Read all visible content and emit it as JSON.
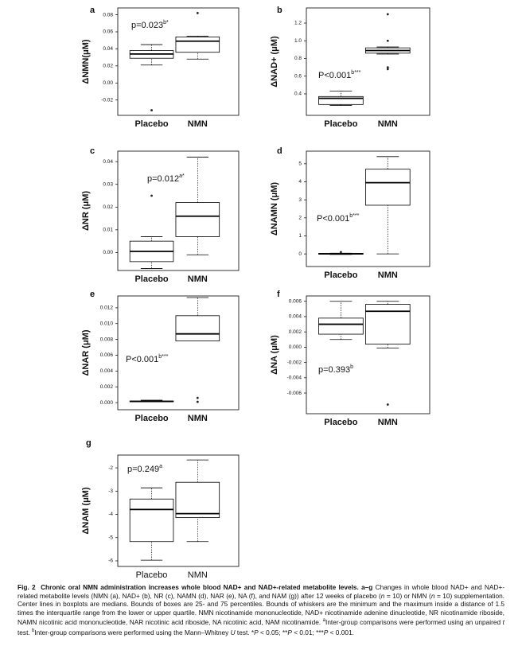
{
  "chart_data": [
    {
      "type": "box",
      "panel_label": "a",
      "ylabel": "ΔNMN(μM)",
      "annotation": {
        "text": "p=0.023",
        "sup": "b*"
      },
      "categories": [
        "Placebo",
        "NMN"
      ],
      "boxes": [
        {
          "min": 0.021,
          "q1": 0.029,
          "median": 0.034,
          "q3": 0.038,
          "max": 0.045,
          "outliers": [
            -0.032
          ]
        },
        {
          "min": 0.028,
          "q1": 0.036,
          "median": 0.049,
          "q3": 0.054,
          "max": 0.055,
          "outliers": [
            0.082
          ]
        }
      ],
      "ylim": [
        -0.038,
        0.088
      ],
      "yticks": [
        {
          "value": -0.02,
          "label": "-0.02"
        },
        {
          "value": 0,
          "label": "0.00"
        },
        0.02,
        0.04,
        0.06,
        0.08
      ]
    },
    {
      "type": "box",
      "panel_label": "b",
      "ylabel": "ΔNAD+ (μM)",
      "annotation": {
        "text": "P<0.001",
        "sup": "b***"
      },
      "categories": [
        "Placebo",
        "NMN"
      ],
      "boxes": [
        {
          "min": 0.27,
          "q1": 0.28,
          "median": 0.35,
          "q3": 0.37,
          "max": 0.43,
          "outliers": []
        },
        {
          "min": 0.85,
          "q1": 0.86,
          "median": 0.89,
          "q3": 0.92,
          "max": 0.93,
          "outliers": [
            1.3,
            1.0,
            0.7,
            0.68
          ]
        }
      ],
      "ylim": [
        0.157,
        1.371
      ],
      "yticks": [
        0.4,
        0.6,
        0.8,
        {
          "value": 1,
          "label": "1.0"
        },
        1.2
      ]
    },
    {
      "type": "box",
      "panel_label": "c",
      "ylabel": "ΔNR (μM)",
      "annotation": {
        "text": "p=0.012",
        "sup": "a*"
      },
      "categories": [
        "Placebo",
        "NMN"
      ],
      "boxes": [
        {
          "min": -0.007,
          "q1": -0.004,
          "median": 0.0005,
          "q3": 0.005,
          "max": 0.007,
          "outliers": [
            0.025
          ]
        },
        {
          "min": -0.001,
          "q1": 0.007,
          "median": 0.016,
          "q3": 0.022,
          "max": 0.042,
          "outliers": []
        }
      ],
      "ylim": [
        -0.0079,
        0.0446
      ],
      "yticks": [
        {
          "value": 0,
          "label": "0.00"
        },
        0.01,
        0.02,
        0.03,
        0.04
      ]
    },
    {
      "type": "box",
      "panel_label": "d",
      "ylabel": "ΔNAMN (μM)",
      "annotation": {
        "text": "P<0.001",
        "sup": "b***"
      },
      "categories": [
        "Placebo",
        "NMN"
      ],
      "boxes": [
        {
          "min": -0.03,
          "q1": -0.02,
          "median": 0,
          "q3": 0.03,
          "max": 0.04,
          "outliers": [
            0.1
          ]
        },
        {
          "min": 0,
          "q1": 2.7,
          "median": 3.95,
          "q3": 4.7,
          "max": 5.4,
          "outliers": []
        }
      ],
      "ylim": [
        -0.7,
        5.7
      ],
      "yticks": [
        0,
        1,
        2,
        3,
        4,
        5
      ]
    },
    {
      "type": "box",
      "panel_label": "e",
      "ylabel": "ΔNAR (μM)",
      "annotation": {
        "text": "P<0.001",
        "sup": "b***"
      },
      "categories": [
        "Placebo",
        "NMN"
      ],
      "boxes": [
        {
          "min": 0.0001,
          "q1": 0.0001,
          "median": 0.00015,
          "q3": 0.0002,
          "max": 0.0003,
          "outliers": []
        },
        {
          "min": 0.0078,
          "q1": 0.0078,
          "median": 0.0087,
          "q3": 0.011,
          "max": 0.0133,
          "outliers": [
            0.0006,
            0.0001
          ]
        }
      ],
      "ylim": [
        -0.0009,
        0.0135
      ],
      "yticks": [
        {
          "value": 0,
          "label": "0.000"
        },
        0.002,
        0.004,
        0.006,
        0.008,
        {
          "value": 0.01,
          "label": "0.010"
        },
        0.012
      ]
    },
    {
      "type": "box",
      "panel_label": "f",
      "ylabel": "ΔNA (μM)",
      "annotation": {
        "text": "p=0.393",
        "sup": "b"
      },
      "categories": [
        "Placebo",
        "NMN"
      ],
      "boxes": [
        {
          "min": 0.001,
          "q1": 0.0017,
          "median": 0.003,
          "q3": 0.0038,
          "max": 0.006,
          "outliers": []
        },
        {
          "min": -0.0001,
          "q1": 0.0004,
          "median": 0.0047,
          "q3": 0.0056,
          "max": 0.006,
          "outliers": [
            -0.0075
          ]
        }
      ],
      "ylim": [
        -0.0087,
        0.0067
      ],
      "yticks": [
        -0.006,
        -0.004,
        -0.002,
        {
          "value": 0,
          "label": "0.000"
        },
        0.002,
        0.004,
        0.006
      ]
    },
    {
      "type": "box",
      "panel_label": "g",
      "ylabel": "ΔNAM (μM)",
      "annotation": {
        "text": "p=0.249",
        "sup": "a"
      },
      "categories": [
        "Placebo",
        "NMN"
      ],
      "boxes": [
        {
          "min": -5.97,
          "q1": -5.17,
          "median": -3.79,
          "q3": -3.34,
          "max": -2.86,
          "outliers": []
        },
        {
          "min": -5.17,
          "q1": -4.14,
          "median": -3.97,
          "q3": -2.62,
          "max": -1.66,
          "outliers": []
        }
      ],
      "ylim": [
        -6.24,
        -1.45
      ],
      "yticks": [
        -6,
        -5,
        -4,
        -3,
        -2
      ]
    }
  ],
  "caption": {
    "label": "Fig. 2",
    "title": "Chronic oral NMN administration increases whole blood NAD+ and NAD+-related metabolite levels. a–g",
    "segments": [
      {
        "t": " Changes in whole blood NAD+ and NAD+-related metabolite levels (NMN (a), NAD+ (b), NR (c), NAMN (d), NAR (e), NA (f), and NAM (g)) after 12 weeks of placebo ("
      },
      {
        "t": "n",
        "style": "i"
      },
      {
        "t": " = 10) or NMN ("
      },
      {
        "t": "n",
        "style": "i"
      },
      {
        "t": " = 10) supplementation. Center lines in boxplots are medians. Bounds of boxes are 25- and 75 percentiles. Bounds of whiskers are the minimum and the maximum inside a distance of 1.5 times the interquartile range from the lower or upper quartile. NMN nicotinamide mononucleotide, NAD+ nicotinamide adenine dinucleotide, NR nicotinamide riboside, NAMN nicotinic acid mononucleotide, NAR nicotinic acid riboside, NA nicotinic acid, NAM nicotinamide. "
      },
      {
        "t": "a",
        "style": "sup"
      },
      {
        "t": "Inter-group comparisons were performed using an unpaired "
      },
      {
        "t": "t",
        "style": "i"
      },
      {
        "t": " test. "
      },
      {
        "t": "b",
        "style": "sup"
      },
      {
        "t": "Inter-group comparisons were performed using the Mann–Whitney "
      },
      {
        "t": "U",
        "style": "i"
      },
      {
        "t": " test. *"
      },
      {
        "t": "P",
        "style": "i"
      },
      {
        "t": " < 0.05; **"
      },
      {
        "t": "P",
        "style": "i"
      },
      {
        "t": " < 0.01; ***"
      },
      {
        "t": "P",
        "style": "i"
      },
      {
        "t": " < 0.001."
      }
    ]
  }
}
